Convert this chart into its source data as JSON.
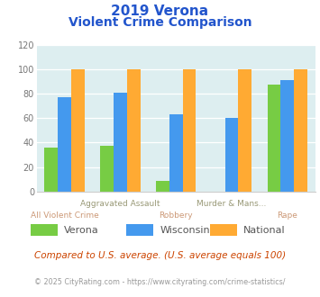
{
  "title_line1": "2019 Verona",
  "title_line2": "Violent Crime Comparison",
  "cat_top": [
    "",
    "Aggravated Assault",
    "",
    "Murder & Mans...",
    ""
  ],
  "cat_bottom": [
    "All Violent Crime",
    "",
    "Robbery",
    "",
    "Rape"
  ],
  "series": {
    "Verona": [
      36,
      37,
      9,
      0,
      87
    ],
    "Wisconsin": [
      77,
      81,
      63,
      60,
      91
    ],
    "National": [
      100,
      100,
      100,
      100,
      100
    ]
  },
  "colors": {
    "Verona": "#77cc44",
    "Wisconsin": "#4499ee",
    "National": "#ffaa33"
  },
  "ylim": [
    0,
    120
  ],
  "yticks": [
    0,
    20,
    40,
    60,
    80,
    100,
    120
  ],
  "plot_bg": "#ddeef0",
  "title_color": "#2255cc",
  "cat_top_color": "#999977",
  "cat_bottom_color": "#cc9977",
  "legend_label_color": "#555555",
  "footnote1": "Compared to U.S. average. (U.S. average equals 100)",
  "footnote2": "© 2025 CityRating.com - https://www.cityrating.com/crime-statistics/",
  "footnote1_color": "#cc4400",
  "footnote2_color": "#999999"
}
